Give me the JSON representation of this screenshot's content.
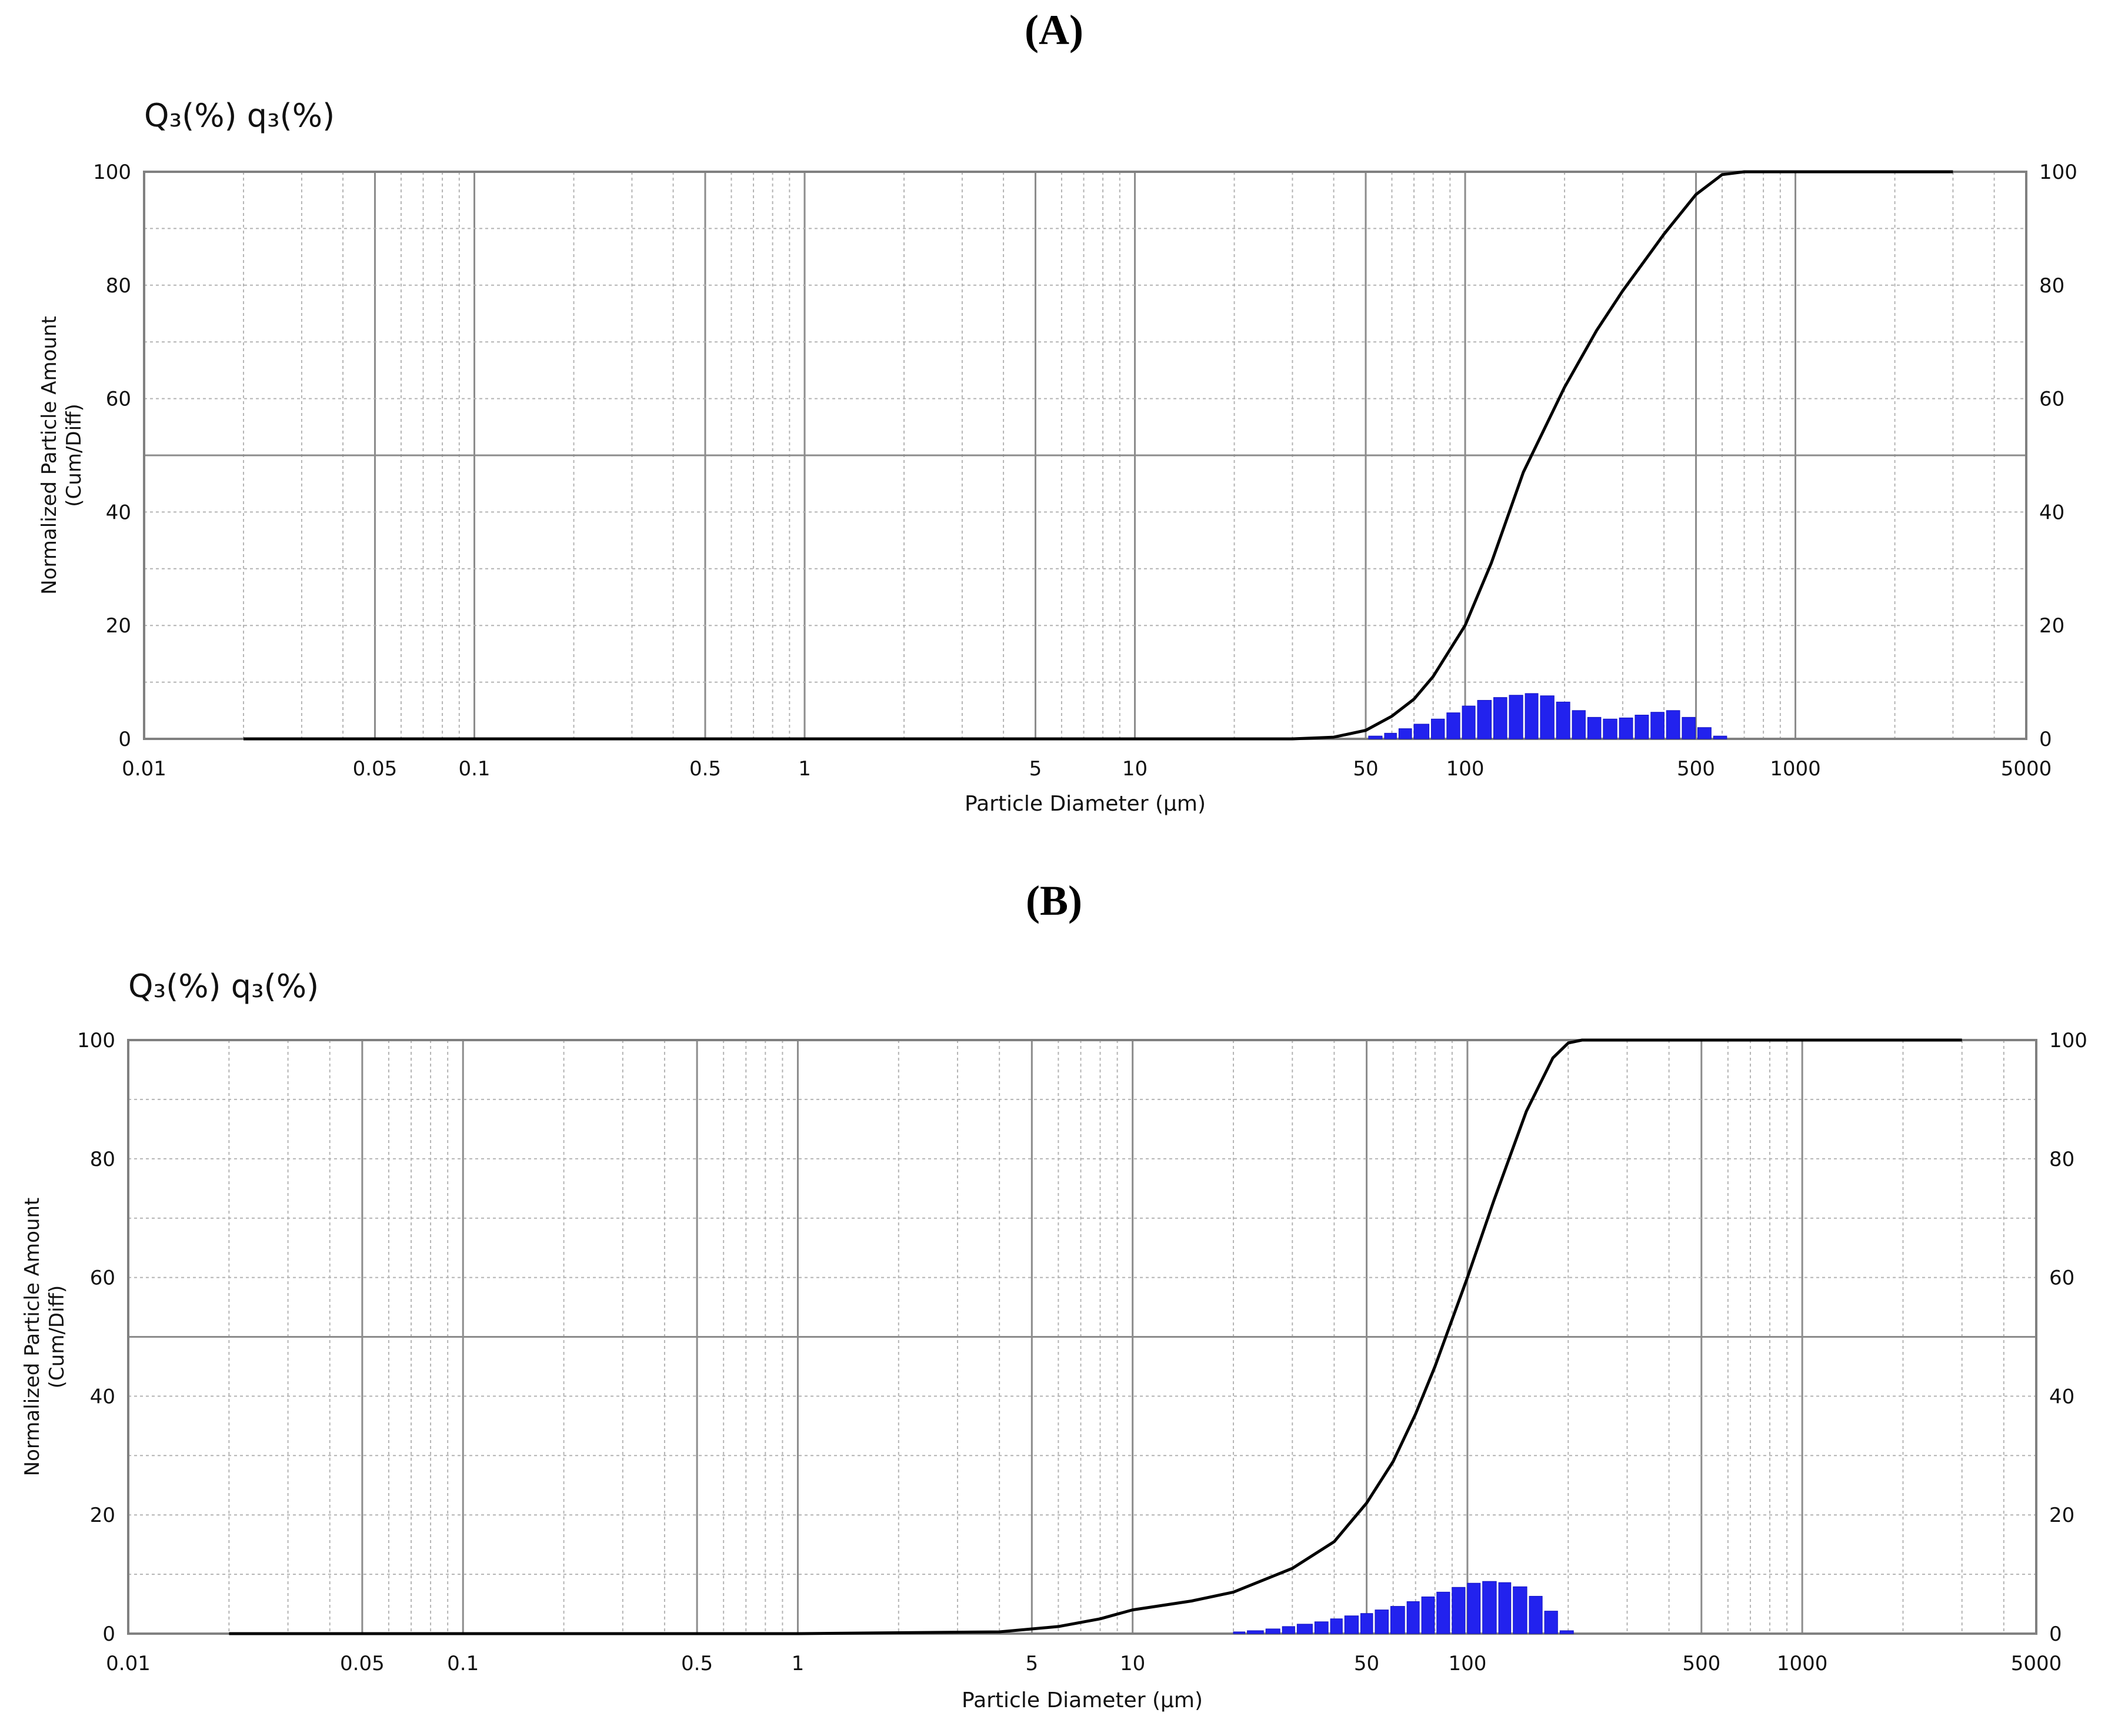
{
  "figure": {
    "panels": [
      {
        "label": "(A)",
        "y_axis_header": "Q₃(%) q₃(%)"
      },
      {
        "label": "(B)",
        "y_axis_header": "Q₃(%) q₃(%)"
      }
    ]
  },
  "chart_data": [
    {
      "type": "line",
      "title": "",
      "xlabel": "Particle Diameter (µm)",
      "ylabel": "Normalized Particle Amount (Cum/Diff)",
      "xscale": "log",
      "xlim": [
        0.01,
        5000
      ],
      "ylim": [
        0,
        100
      ],
      "x_ticks": [
        "0.01",
        "0.05",
        "0.1",
        "0.5",
        "1",
        "5",
        "10",
        "50",
        "100",
        "500",
        "1000",
        "5000"
      ],
      "y_ticks": [
        "0",
        "20",
        "40",
        "60",
        "80",
        "100"
      ],
      "grid": true,
      "series": [
        {
          "kind": "cumulative-line",
          "color": "#000000",
          "x": [
            0.02,
            1,
            10,
            30,
            40,
            50,
            60,
            70,
            80,
            100,
            120,
            150,
            200,
            250,
            300,
            400,
            500,
            600,
            700,
            1000,
            3000
          ],
          "y": [
            0,
            0,
            0,
            0,
            0.3,
            1.5,
            4,
            7,
            11,
            20,
            31,
            47,
            62,
            72,
            79,
            89,
            96,
            99.5,
            100,
            100,
            100
          ]
        },
        {
          "kind": "frequency-bars",
          "color": "#2222ee",
          "x": [
            51,
            57,
            63,
            70,
            79,
            88,
            98,
            109,
            122,
            136,
            152,
            169,
            189,
            211,
            235,
            262,
            293,
            327,
            365,
            407,
            454,
            506,
            565,
            630
          ],
          "y": [
            0.5,
            1,
            1.8,
            2.6,
            3.5,
            4.6,
            5.8,
            6.8,
            7.3,
            7.7,
            8,
            7.6,
            6.5,
            5,
            3.8,
            3.5,
            3.7,
            4.2,
            4.7,
            5,
            3.8,
            2,
            0.5,
            0
          ]
        }
      ]
    },
    {
      "type": "line",
      "title": "",
      "xlabel": "Particle Diameter (µm)",
      "ylabel": "Normalized Particle Amount (Cum/Diff)",
      "xscale": "log",
      "xlim": [
        0.01,
        5000
      ],
      "ylim": [
        0,
        100
      ],
      "x_ticks": [
        "0.01",
        "0.05",
        "0.1",
        "0.5",
        "1",
        "5",
        "10",
        "50",
        "100",
        "500",
        "1000",
        "5000"
      ],
      "y_ticks": [
        "0",
        "20",
        "40",
        "60",
        "80",
        "100"
      ],
      "grid": true,
      "series": [
        {
          "kind": "cumulative-line",
          "color": "#000000",
          "x": [
            0.02,
            1,
            4,
            6,
            8,
            10,
            15,
            20,
            30,
            40,
            50,
            60,
            70,
            80,
            100,
            120,
            150,
            180,
            200,
            220,
            300,
            3000
          ],
          "y": [
            0,
            0,
            0.3,
            1.2,
            2.5,
            4,
            5.5,
            7,
            11,
            15.5,
            22,
            29,
            37,
            45,
            60,
            73,
            88,
            97,
            99.5,
            100,
            100,
            100
          ]
        },
        {
          "kind": "frequency-bars",
          "color": "#2222ee",
          "x": [
            20,
            22,
            25,
            28,
            31,
            35,
            39,
            43,
            48,
            53,
            59,
            66,
            73,
            81,
            90,
            100,
            111,
            124,
            137,
            153,
            170,
            189
          ],
          "y": [
            0.3,
            0.5,
            0.8,
            1.2,
            1.6,
            2,
            2.5,
            3,
            3.4,
            4,
            4.6,
            5.4,
            6.2,
            7,
            7.8,
            8.5,
            8.8,
            8.6,
            7.9,
            6.3,
            3.8,
            0.5
          ]
        }
      ]
    }
  ]
}
